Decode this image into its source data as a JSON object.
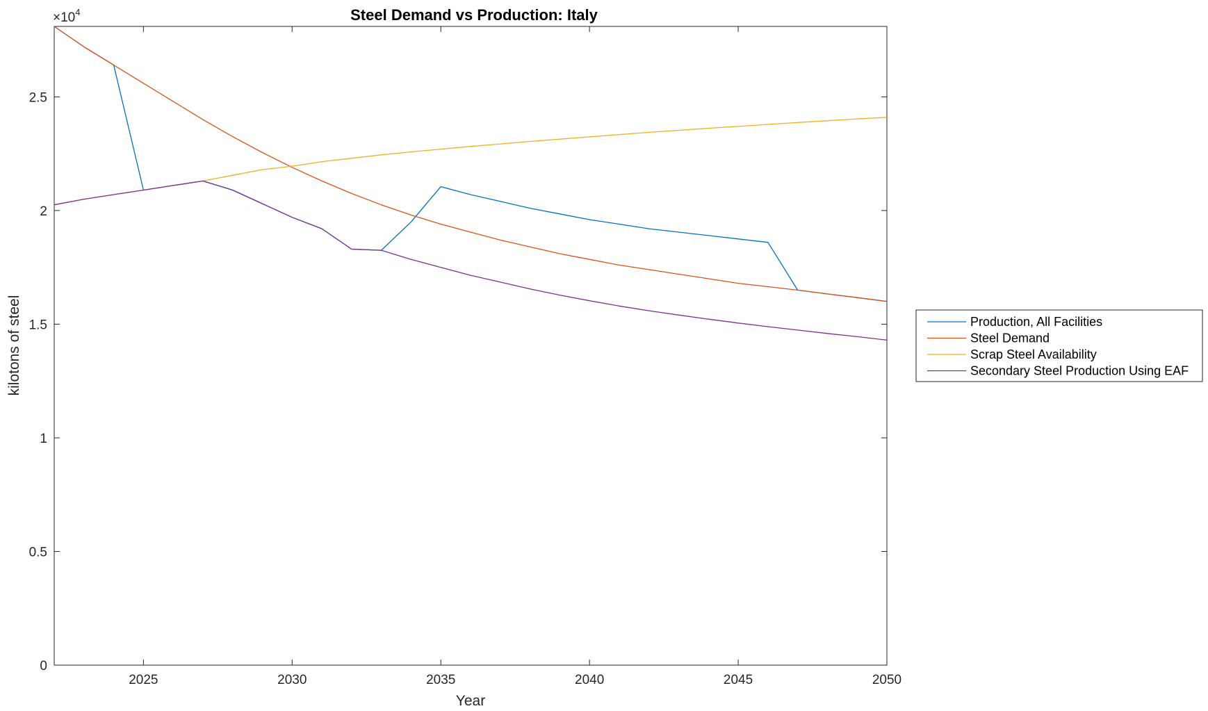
{
  "chart_data": {
    "type": "line",
    "title": "Steel Demand vs Production: Italy",
    "xlabel": "Year",
    "ylabel": "kilotons of steel",
    "y_exponent_label": "×10",
    "y_exponent_power": "4",
    "y_scale": 10000,
    "xlim": [
      2022,
      2050
    ],
    "ylim": [
      0,
      28100
    ],
    "x_ticks": [
      2025,
      2030,
      2035,
      2040,
      2045,
      2050
    ],
    "x_tick_labels": [
      "2025",
      "2030",
      "2035",
      "2040",
      "2045",
      "2050"
    ],
    "y_ticks": [
      0,
      5000,
      10000,
      15000,
      20000,
      25000
    ],
    "y_tick_labels": [
      "0",
      "0.5",
      "1",
      "1.5",
      "2",
      "2.5"
    ],
    "grid": false,
    "legend_position": "outside-right",
    "x": [
      2022,
      2023,
      2024,
      2025,
      2026,
      2027,
      2028,
      2029,
      2030,
      2031,
      2032,
      2033,
      2034,
      2035,
      2036,
      2037,
      2038,
      2039,
      2040,
      2041,
      2042,
      2043,
      2044,
      2045,
      2046,
      2047,
      2048,
      2049,
      2050
    ],
    "series": [
      {
        "name": "Production, All Facilities",
        "color": "#0072BD",
        "values": [
          28100,
          27200,
          26400,
          20900,
          21100,
          21300,
          20900,
          20300,
          19700,
          19200,
          18300,
          18250,
          19500,
          21050,
          20700,
          20400,
          20100,
          19850,
          19600,
          19400,
          19200,
          19050,
          18900,
          18750,
          18600,
          16500,
          16330,
          16170,
          16000
        ]
      },
      {
        "name": "Steel Demand",
        "color": "#D95319",
        "values": [
          28100,
          27200,
          26400,
          25600,
          24800,
          24000,
          23250,
          22550,
          21900,
          21300,
          20750,
          20250,
          19800,
          19400,
          19050,
          18700,
          18400,
          18100,
          17850,
          17600,
          17400,
          17200,
          17000,
          16800,
          16650,
          16500,
          16330,
          16170,
          16000
        ]
      },
      {
        "name": "Scrap Steel Availability",
        "color": "#EDB120",
        "values": [
          20250,
          20500,
          20700,
          20900,
          21100,
          21300,
          21550,
          21800,
          21950,
          22150,
          22300,
          22450,
          22580,
          22700,
          22820,
          22930,
          23040,
          23140,
          23240,
          23340,
          23440,
          23530,
          23620,
          23700,
          23790,
          23870,
          23950,
          24030,
          24100
        ]
      },
      {
        "name": "Secondary Steel Production Using EAF",
        "color": "#7E2F8E",
        "values": [
          20250,
          20500,
          20700,
          20900,
          21100,
          21300,
          20900,
          20300,
          19700,
          19200,
          18300,
          18250,
          17850,
          17500,
          17150,
          16850,
          16550,
          16280,
          16030,
          15800,
          15590,
          15400,
          15220,
          15050,
          14890,
          14740,
          14590,
          14450,
          14300
        ]
      }
    ]
  }
}
